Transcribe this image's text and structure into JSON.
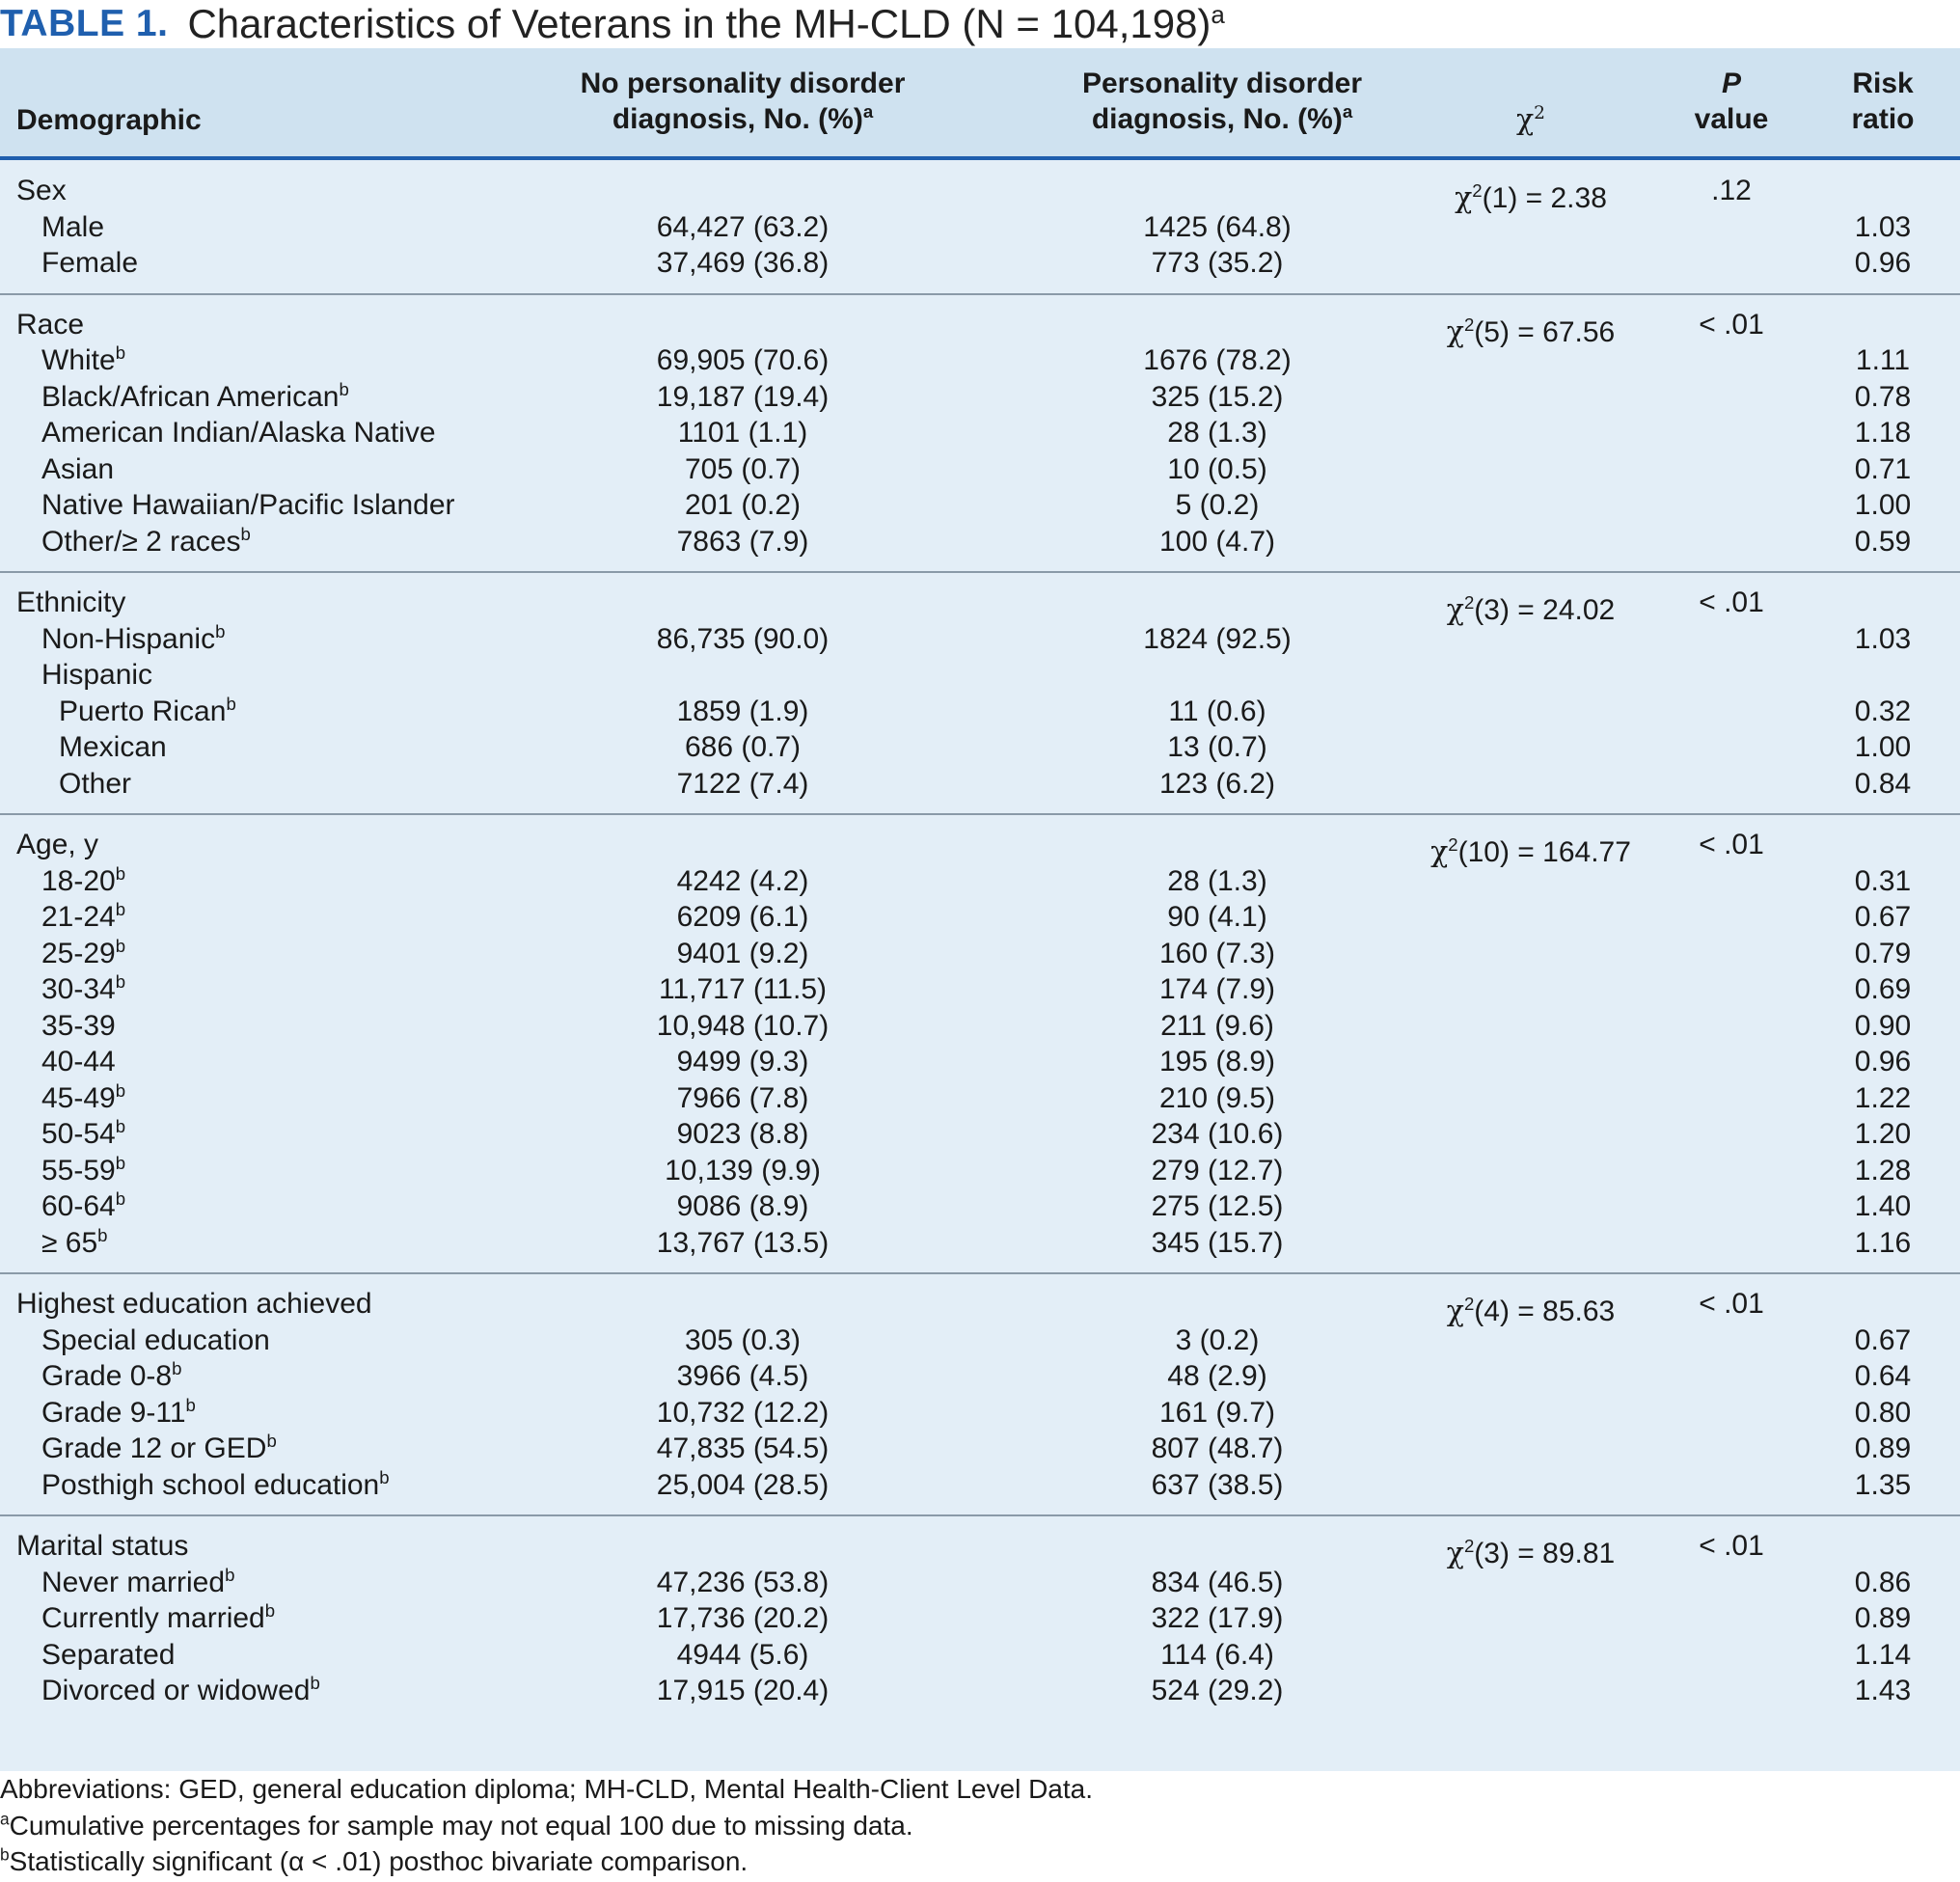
{
  "title": {
    "label": "TABLE 1.",
    "text": "Characteristics of Veterans in the MH-CLD (N = 104,198)",
    "sup": "a"
  },
  "header": {
    "demographic": "Demographic",
    "no_pd_line1": "No personality disorder",
    "no_pd_line2": "diagnosis, No. (%)",
    "no_pd_sup": "a",
    "pd_line1": "Personality disorder",
    "pd_line2": "diagnosis, No. (%)",
    "pd_sup": "a",
    "chi_symbol": "χ",
    "chi_sup": "2",
    "p_line1": "P",
    "p_line2": "value",
    "rr_line1": "Risk",
    "rr_line2": "ratio"
  },
  "sections": [
    {
      "title": "Sex",
      "chi": "χ2(1) = 2.38",
      "chi_df": "(1) = 2.38",
      "p": ".12",
      "rows": [
        {
          "label": "Male",
          "sup": "",
          "indent": 1,
          "no_pd": "64,427 (63.2)",
          "pd": "1425 (64.8)",
          "rr": "1.03"
        },
        {
          "label": "Female",
          "sup": "",
          "indent": 1,
          "no_pd": "37,469 (36.8)",
          "pd": "773 (35.2)",
          "rr": "0.96"
        }
      ]
    },
    {
      "title": "Race",
      "chi_df": "(5) = 67.56",
      "p": "< .01",
      "rows": [
        {
          "label": "White",
          "sup": "b",
          "indent": 1,
          "no_pd": "69,905 (70.6)",
          "pd": "1676 (78.2)",
          "rr": "1.11"
        },
        {
          "label": "Black/African American",
          "sup": "b",
          "indent": 1,
          "no_pd": "19,187 (19.4)",
          "pd": "325 (15.2)",
          "rr": "0.78"
        },
        {
          "label": "American Indian/Alaska Native",
          "sup": "",
          "indent": 1,
          "no_pd": "1101 (1.1)",
          "pd": "28 (1.3)",
          "rr": "1.18"
        },
        {
          "label": "Asian",
          "sup": "",
          "indent": 1,
          "no_pd": "705 (0.7)",
          "pd": "10 (0.5)",
          "rr": "0.71"
        },
        {
          "label": "Native Hawaiian/Pacific Islander",
          "sup": "",
          "indent": 1,
          "no_pd": "201 (0.2)",
          "pd": "5 (0.2)",
          "rr": "1.00"
        },
        {
          "label": "Other/≥ 2 races",
          "sup": "b",
          "indent": 1,
          "no_pd": "7863 (7.9)",
          "pd": "100 (4.7)",
          "rr": "0.59"
        }
      ]
    },
    {
      "title": "Ethnicity",
      "chi_df": "(3) = 24.02",
      "p": "< .01",
      "rows": [
        {
          "label": "Non-Hispanic",
          "sup": "b",
          "indent": 1,
          "no_pd": "86,735 (90.0)",
          "pd": "1824 (92.5)",
          "rr": "1.03"
        },
        {
          "label": "Hispanic",
          "sup": "",
          "indent": 1,
          "no_pd": "",
          "pd": "",
          "rr": ""
        },
        {
          "label": "Puerto Rican",
          "sup": "b",
          "indent": 2,
          "no_pd": "1859 (1.9)",
          "pd": "11 (0.6)",
          "rr": "0.32"
        },
        {
          "label": "Mexican",
          "sup": "",
          "indent": 2,
          "no_pd": "686 (0.7)",
          "pd": "13 (0.7)",
          "rr": "1.00"
        },
        {
          "label": "Other",
          "sup": "",
          "indent": 2,
          "no_pd": "7122 (7.4)",
          "pd": "123 (6.2)",
          "rr": "0.84"
        }
      ]
    },
    {
      "title": "Age, y",
      "chi_df": "(10) = 164.77",
      "p": "< .01",
      "rows": [
        {
          "label": "18-20",
          "sup": "b",
          "indent": 1,
          "no_pd": "4242 (4.2)",
          "pd": "28 (1.3)",
          "rr": "0.31"
        },
        {
          "label": "21-24",
          "sup": "b",
          "indent": 1,
          "no_pd": "6209 (6.1)",
          "pd": "90 (4.1)",
          "rr": "0.67"
        },
        {
          "label": "25-29",
          "sup": "b",
          "indent": 1,
          "no_pd": "9401 (9.2)",
          "pd": "160 (7.3)",
          "rr": "0.79"
        },
        {
          "label": "30-34",
          "sup": "b",
          "indent": 1,
          "no_pd": "11,717 (11.5)",
          "pd": "174 (7.9)",
          "rr": "0.69"
        },
        {
          "label": "35-39",
          "sup": "",
          "indent": 1,
          "no_pd": "10,948 (10.7)",
          "pd": "211 (9.6)",
          "rr": "0.90"
        },
        {
          "label": "40-44",
          "sup": "",
          "indent": 1,
          "no_pd": "9499 (9.3)",
          "pd": "195 (8.9)",
          "rr": "0.96"
        },
        {
          "label": "45-49",
          "sup": "b",
          "indent": 1,
          "no_pd": "7966 (7.8)",
          "pd": "210 (9.5)",
          "rr": "1.22"
        },
        {
          "label": "50-54",
          "sup": "b",
          "indent": 1,
          "no_pd": "9023 (8.8)",
          "pd": "234 (10.6)",
          "rr": "1.20"
        },
        {
          "label": "55-59",
          "sup": "b",
          "indent": 1,
          "no_pd": "10,139 (9.9)",
          "pd": "279 (12.7)",
          "rr": "1.28"
        },
        {
          "label": "60-64",
          "sup": "b",
          "indent": 1,
          "no_pd": "9086 (8.9)",
          "pd": "275 (12.5)",
          "rr": "1.40"
        },
        {
          "label": "≥ 65",
          "sup": "b",
          "indent": 1,
          "no_pd": "13,767 (13.5)",
          "pd": "345 (15.7)",
          "rr": "1.16"
        }
      ]
    },
    {
      "title": "Highest education achieved",
      "chi_df": "(4) = 85.63",
      "p": "< .01",
      "rows": [
        {
          "label": "Special education",
          "sup": "",
          "indent": 1,
          "no_pd": "305 (0.3)",
          "pd": "3 (0.2)",
          "rr": "0.67"
        },
        {
          "label": "Grade 0-8",
          "sup": "b",
          "indent": 1,
          "no_pd": "3966 (4.5)",
          "pd": "48 (2.9)",
          "rr": "0.64"
        },
        {
          "label": "Grade 9-11",
          "sup": "b",
          "indent": 1,
          "no_pd": "10,732 (12.2)",
          "pd": "161 (9.7)",
          "rr": "0.80"
        },
        {
          "label": "Grade 12 or GED",
          "sup": "b",
          "indent": 1,
          "no_pd": "47,835 (54.5)",
          "pd": "807 (48.7)",
          "rr": "0.89"
        },
        {
          "label": "Posthigh school education",
          "sup": "b",
          "indent": 1,
          "no_pd": "25,004 (28.5)",
          "pd": "637 (38.5)",
          "rr": "1.35"
        }
      ]
    },
    {
      "title": "Marital status",
      "chi_df": "(3) = 89.81",
      "p": "< .01",
      "rows": [
        {
          "label": "Never married",
          "sup": "b",
          "indent": 1,
          "no_pd": "47,236 (53.8)",
          "pd": "834 (46.5)",
          "rr": "0.86"
        },
        {
          "label": "Currently married",
          "sup": "b",
          "indent": 1,
          "no_pd": "17,736 (20.2)",
          "pd": "322 (17.9)",
          "rr": "0.89"
        },
        {
          "label": "Separated",
          "sup": "",
          "indent": 1,
          "no_pd": "4944 (5.6)",
          "pd": "114 (6.4)",
          "rr": "1.14"
        },
        {
          "label": "Divorced or widowed",
          "sup": "b",
          "indent": 1,
          "no_pd": "17,915 (20.4)",
          "pd": "524 (29.2)",
          "rr": "1.43"
        }
      ]
    }
  ],
  "footnotes": [
    {
      "sup": "",
      "text": "Abbreviations: GED, general education diploma; MH-CLD, Mental Health-Client Level Data."
    },
    {
      "sup": "a",
      "text": "Cumulative percentages for sample may not equal 100 due to missing data."
    },
    {
      "sup": "b",
      "text": "Statistically significant (α < .01) posthoc bivariate comparison."
    }
  ],
  "colors": {
    "accent": "#1f5fae",
    "header_bg": "#cfe2f0",
    "body_bg": "#e3eef7",
    "divider": "#8a9aa8"
  }
}
